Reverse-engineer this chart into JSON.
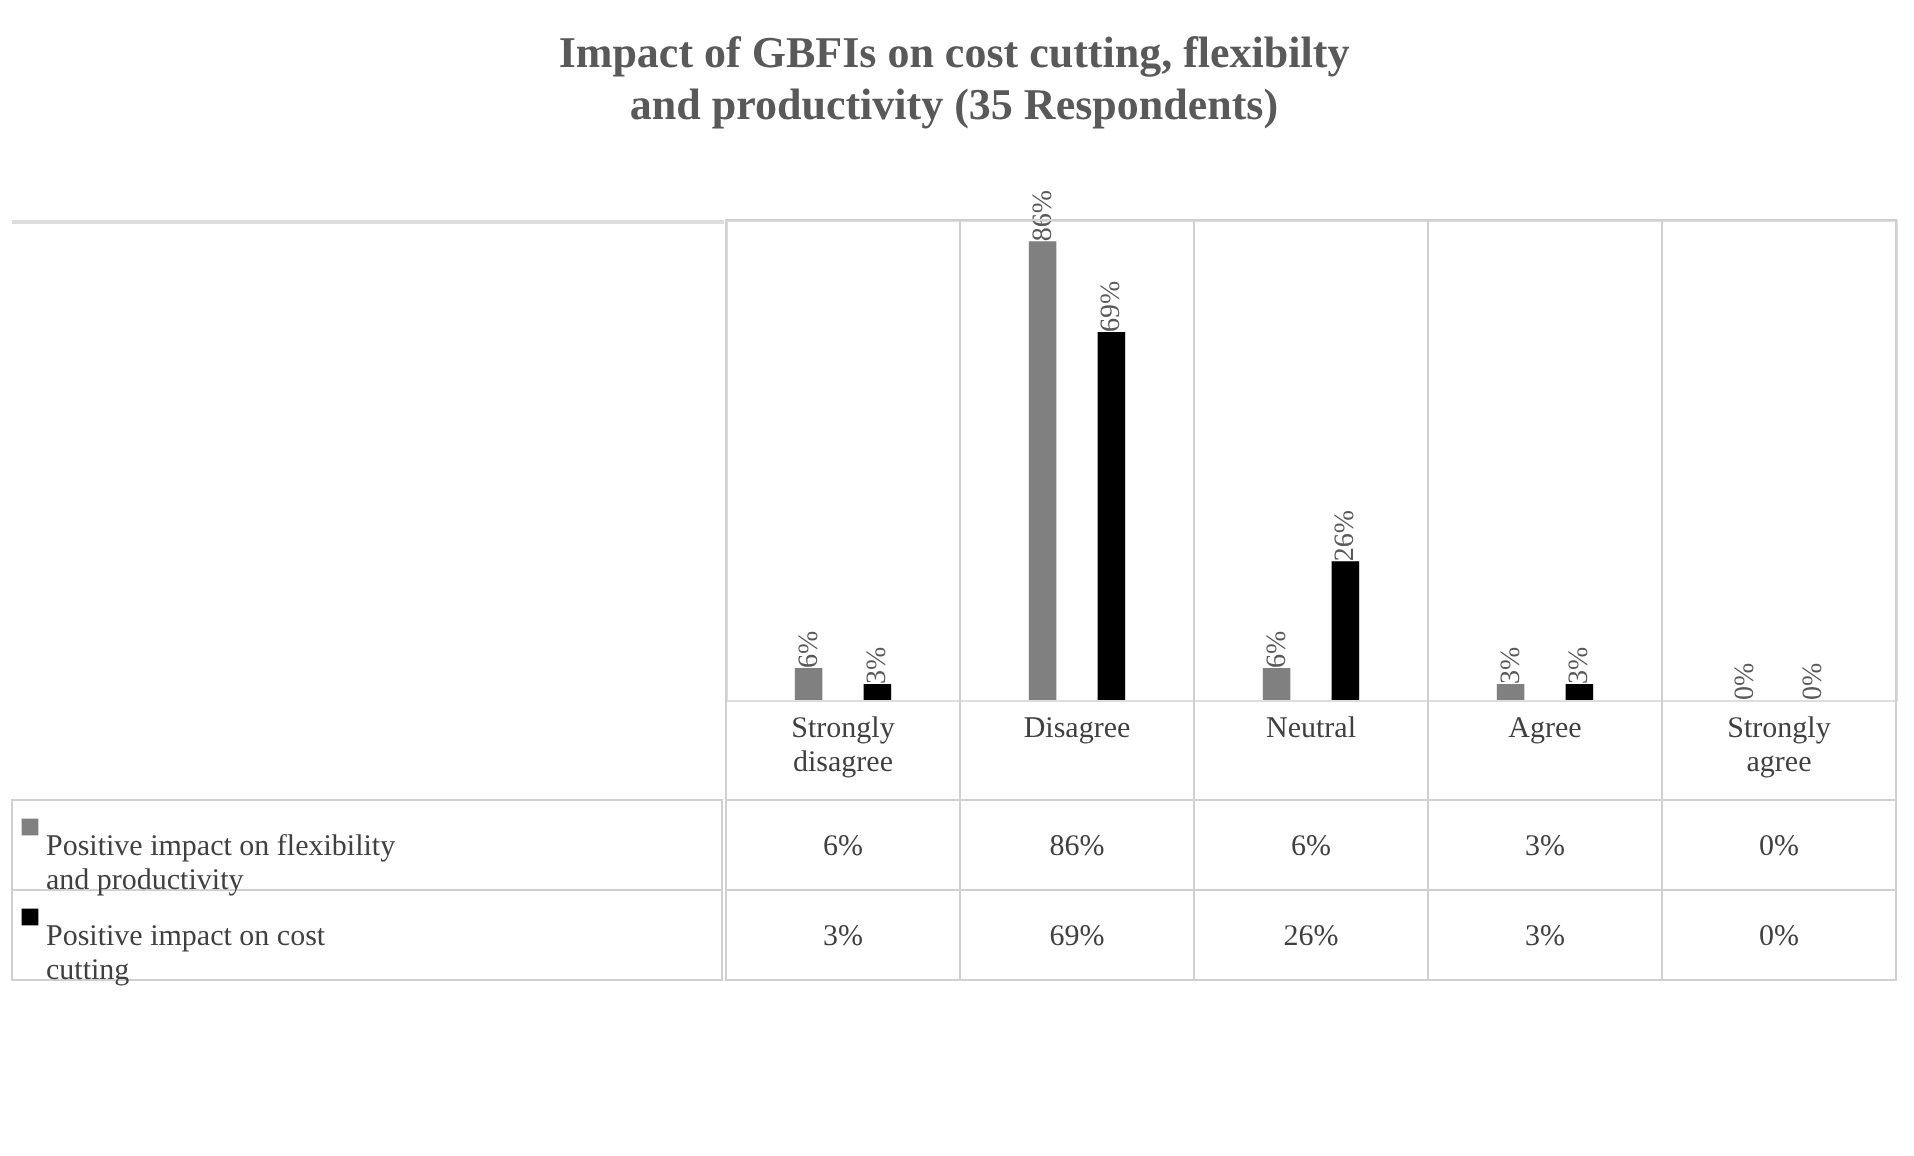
{
  "chart_data": {
    "type": "bar",
    "title": "Impact of GBFIs on cost cutting, flexibilty and productivity (35 Respondents)",
    "categories": [
      "Strongly disagree",
      "Disagree",
      "Neutral",
      "Agree",
      "Strongly agree"
    ],
    "series": [
      {
        "name": "Positive impact on flexibility and productivity",
        "color": "#808080",
        "values": [
          6,
          86,
          6,
          3,
          0
        ],
        "value_labels": [
          "6%",
          "86%",
          "6%",
          "3%",
          "0%"
        ]
      },
      {
        "name": "Positive impact on cost cutting",
        "color": "#000000",
        "values": [
          3,
          69,
          26,
          3,
          0
        ],
        "value_labels": [
          "3%",
          "69%",
          "26%",
          "3%",
          "0%"
        ]
      }
    ],
    "legend": "bottom"
  }
}
